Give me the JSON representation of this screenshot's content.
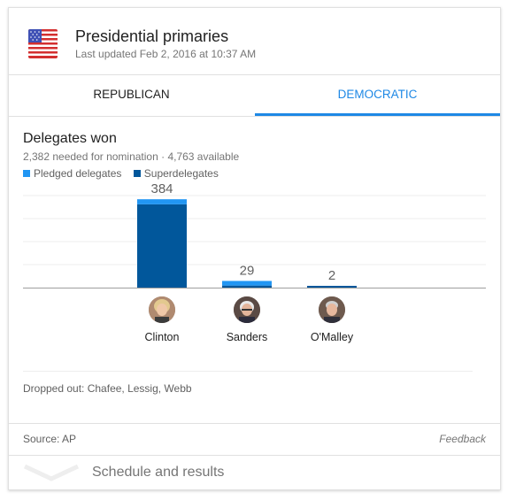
{
  "header": {
    "title": "Presidential primaries",
    "updated": "Last updated Feb 2, 2016 at 10:37 AM"
  },
  "tabs": [
    {
      "label": "REPUBLICAN",
      "selected": false
    },
    {
      "label": "DEMOCRATIC",
      "selected": true
    }
  ],
  "section": {
    "title": "Delegates won",
    "needed": "2,382 needed for nomination · 4,763 available"
  },
  "legend": {
    "pledged": "Pledged delegates",
    "super": "Superdelegates"
  },
  "colors": {
    "pledged": "#2196f3",
    "super": "#01579b",
    "accent": "#1e88e5"
  },
  "chart_data": {
    "type": "bar",
    "categories": [
      "Clinton",
      "Sanders",
      "O'Malley"
    ],
    "series": [
      {
        "name": "Pledged delegates",
        "values": [
          22,
          20,
          0
        ]
      },
      {
        "name": "Superdelegates",
        "values": [
          362,
          9,
          2
        ]
      }
    ],
    "totals": [
      "384",
      "29",
      "2"
    ],
    "ylim": [
      0,
      400
    ],
    "grid": true,
    "legend": "top-left"
  },
  "candidates": [
    {
      "name": "Clinton"
    },
    {
      "name": "Sanders"
    },
    {
      "name": "O'Malley"
    }
  ],
  "dropped": "Dropped out: Chafee, Lessig, Webb",
  "footer": {
    "source": "Source: AP",
    "feedback": "Feedback"
  },
  "schedule": {
    "label": "Schedule and results"
  }
}
